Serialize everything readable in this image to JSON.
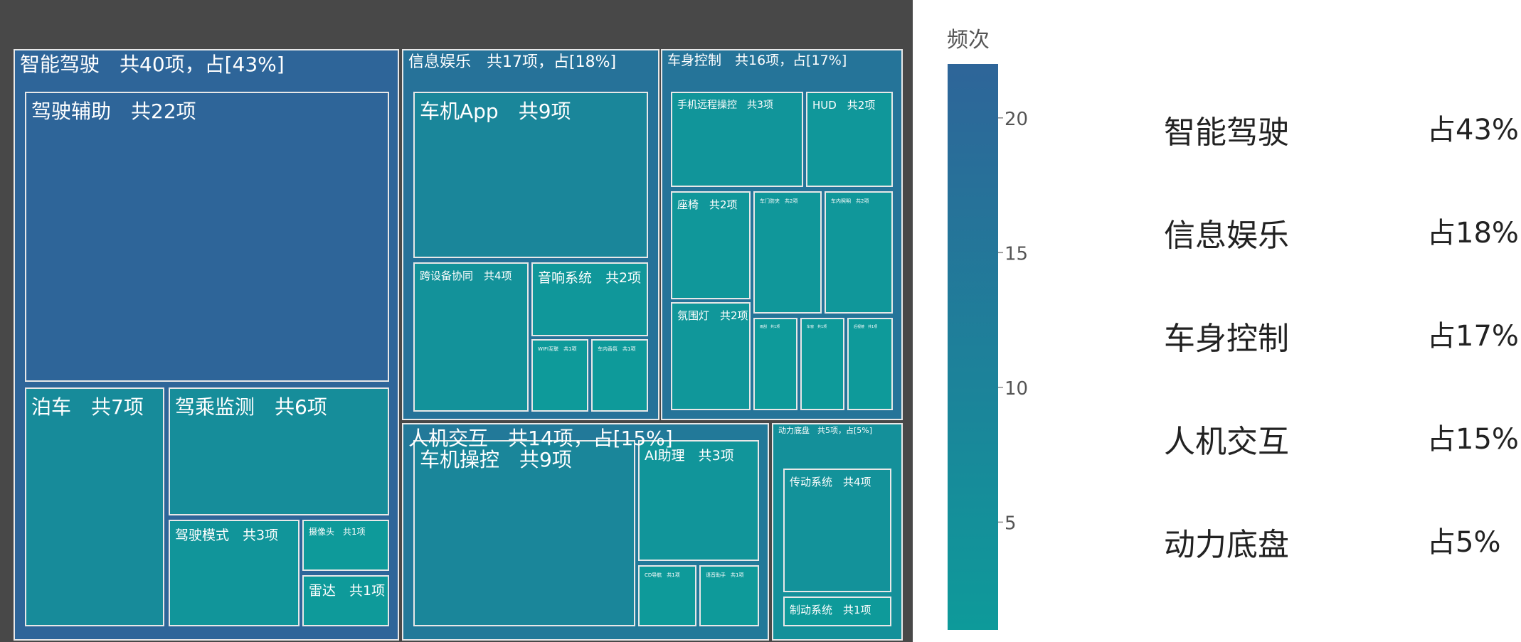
{
  "chart_data": {
    "type": "treemap",
    "colorbar": {
      "title": "频次",
      "ticks": [
        20,
        15,
        10,
        5
      ],
      "range": [
        1,
        22
      ],
      "color_low": "#0e9a9a",
      "color_high": "#2e6599"
    },
    "groups": [
      {
        "key": "zn",
        "label": "智能驾驶　共40项，占[43%]",
        "value": 40,
        "children": [
          {
            "key": "jsfz",
            "label": "驾驶辅助　共22项",
            "value": 22
          },
          {
            "key": "bc",
            "label": "泊车　共7项",
            "value": 7
          },
          {
            "key": "jcjc",
            "label": "驾乘监测　共6项",
            "value": 6
          },
          {
            "key": "jsms",
            "label": "驾驶模式　共3项",
            "value": 3
          },
          {
            "key": "sxt",
            "label": "摄像头　共1项",
            "value": 1
          },
          {
            "key": "ld",
            "label": "雷达　共1项",
            "value": 1
          }
        ]
      },
      {
        "key": "xx",
        "label": "信息娱乐　共17项，占[18%]",
        "value": 17,
        "children": [
          {
            "key": "cjapp",
            "label": "车机App　共9项",
            "value": 9
          },
          {
            "key": "ksbxt",
            "label": "跨设备协同　共4项",
            "value": 4
          },
          {
            "key": "yxxt",
            "label": "音响系统　共2项",
            "value": 2
          },
          {
            "key": "wifi",
            "label": "WIFI互联　共1项",
            "value": 1
          },
          {
            "key": "cnxg",
            "label": "车内香氛　共1项",
            "value": 1
          }
        ]
      },
      {
        "key": "cs",
        "label": "车身控制　共16项，占[17%]",
        "value": 16,
        "children": [
          {
            "key": "sjyc",
            "label": "手机远程操控　共3项",
            "value": 3
          },
          {
            "key": "hud",
            "label": "HUD　共2项",
            "value": 2
          },
          {
            "key": "zy",
            "label": "座椅　共2项",
            "value": 2
          },
          {
            "key": "cmfk",
            "label": "车门防夹　共2项",
            "value": 2
          },
          {
            "key": "cnzm",
            "label": "车内照明　共2项",
            "value": 2
          },
          {
            "key": "fwd",
            "label": "氛围灯　共2项",
            "value": 2
          },
          {
            "key": "s7",
            "label": "雨刮　共1项",
            "value": 1
          },
          {
            "key": "s8",
            "label": "车窗　共1项",
            "value": 1
          },
          {
            "key": "s9",
            "label": "后视镜　共1项",
            "value": 1
          }
        ]
      },
      {
        "key": "rj",
        "label": "人机交互　共14项，占[15%]",
        "value": 14,
        "children": [
          {
            "key": "cjck",
            "label": "车机操控　共9项",
            "value": 9
          },
          {
            "key": "ai",
            "label": "AI助理　共3项",
            "value": 3
          },
          {
            "key": "cdb",
            "label": "CD导航　共1项",
            "value": 1
          },
          {
            "key": "yyzl",
            "label": "语音助手　共1项",
            "value": 1
          }
        ]
      },
      {
        "key": "dl",
        "label": "动力底盘　共5项，占[5%]",
        "value": 5,
        "children": [
          {
            "key": "cdxt",
            "label": "传动系统　共4项",
            "value": 4
          },
          {
            "key": "zdxt",
            "label": "制动系统　共1项",
            "value": 1
          }
        ]
      }
    ]
  },
  "side_list": [
    {
      "name": "智能驾驶",
      "share": "占43%"
    },
    {
      "name": "信息娱乐",
      "share": "占18%"
    },
    {
      "name": "车身控制",
      "share": "占17%"
    },
    {
      "name": "人机交互",
      "share": "占15%"
    },
    {
      "name": "动力底盘",
      "share": "占5%"
    }
  ]
}
